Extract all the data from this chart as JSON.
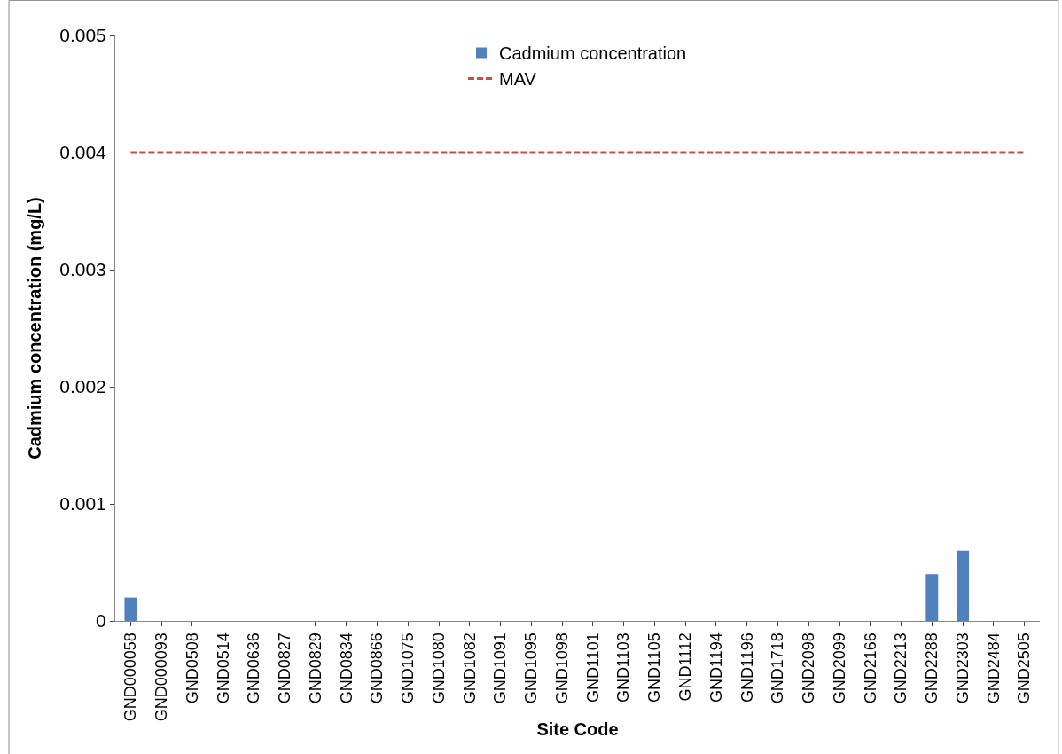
{
  "chart_data": {
    "type": "bar",
    "xlabel": "Site Code",
    "ylabel": "Cadmium concentration (mg/L)",
    "categories": [
      "GND000058",
      "GND000093",
      "GND0508",
      "GND0514",
      "GND0636",
      "GND0827",
      "GND0829",
      "GND0834",
      "GND0866",
      "GND1075",
      "GND1080",
      "GND1082",
      "GND1091",
      "GND1095",
      "GND1098",
      "GND1101",
      "GND1103",
      "GND1105",
      "GND1112",
      "GND1194",
      "GND1196",
      "GND1718",
      "GND2098",
      "GND2099",
      "GND2166",
      "GND2213",
      "GND2288",
      "GND2303",
      "GND2484",
      "GND2505"
    ],
    "series": [
      {
        "name": "Cadmium concentration",
        "color": "#4f81bd",
        "values": [
          0.0002,
          0,
          0,
          0,
          0,
          0,
          0,
          0,
          0,
          0,
          0,
          0,
          0,
          0,
          0,
          0,
          0,
          0,
          0,
          0,
          0,
          0,
          0,
          0,
          0,
          0,
          0.0004,
          0.0006,
          0,
          0
        ]
      },
      {
        "name": "MAV",
        "type": "line",
        "color": "#c0504d",
        "line_style": "dashed",
        "values": [
          0.004,
          0.004,
          0.004,
          0.004,
          0.004,
          0.004,
          0.004,
          0.004,
          0.004,
          0.004,
          0.004,
          0.004,
          0.004,
          0.004,
          0.004,
          0.004,
          0.004,
          0.004,
          0.004,
          0.004,
          0.004,
          0.004,
          0.004,
          0.004,
          0.004,
          0.004,
          0.004,
          0.004,
          0.004,
          0.004
        ]
      }
    ],
    "ylim": [
      0,
      0.005
    ],
    "yticks": [
      0,
      0.001,
      0.002,
      0.003,
      0.004,
      0.005
    ],
    "grid": false,
    "legend": "top",
    "marker": "none"
  }
}
